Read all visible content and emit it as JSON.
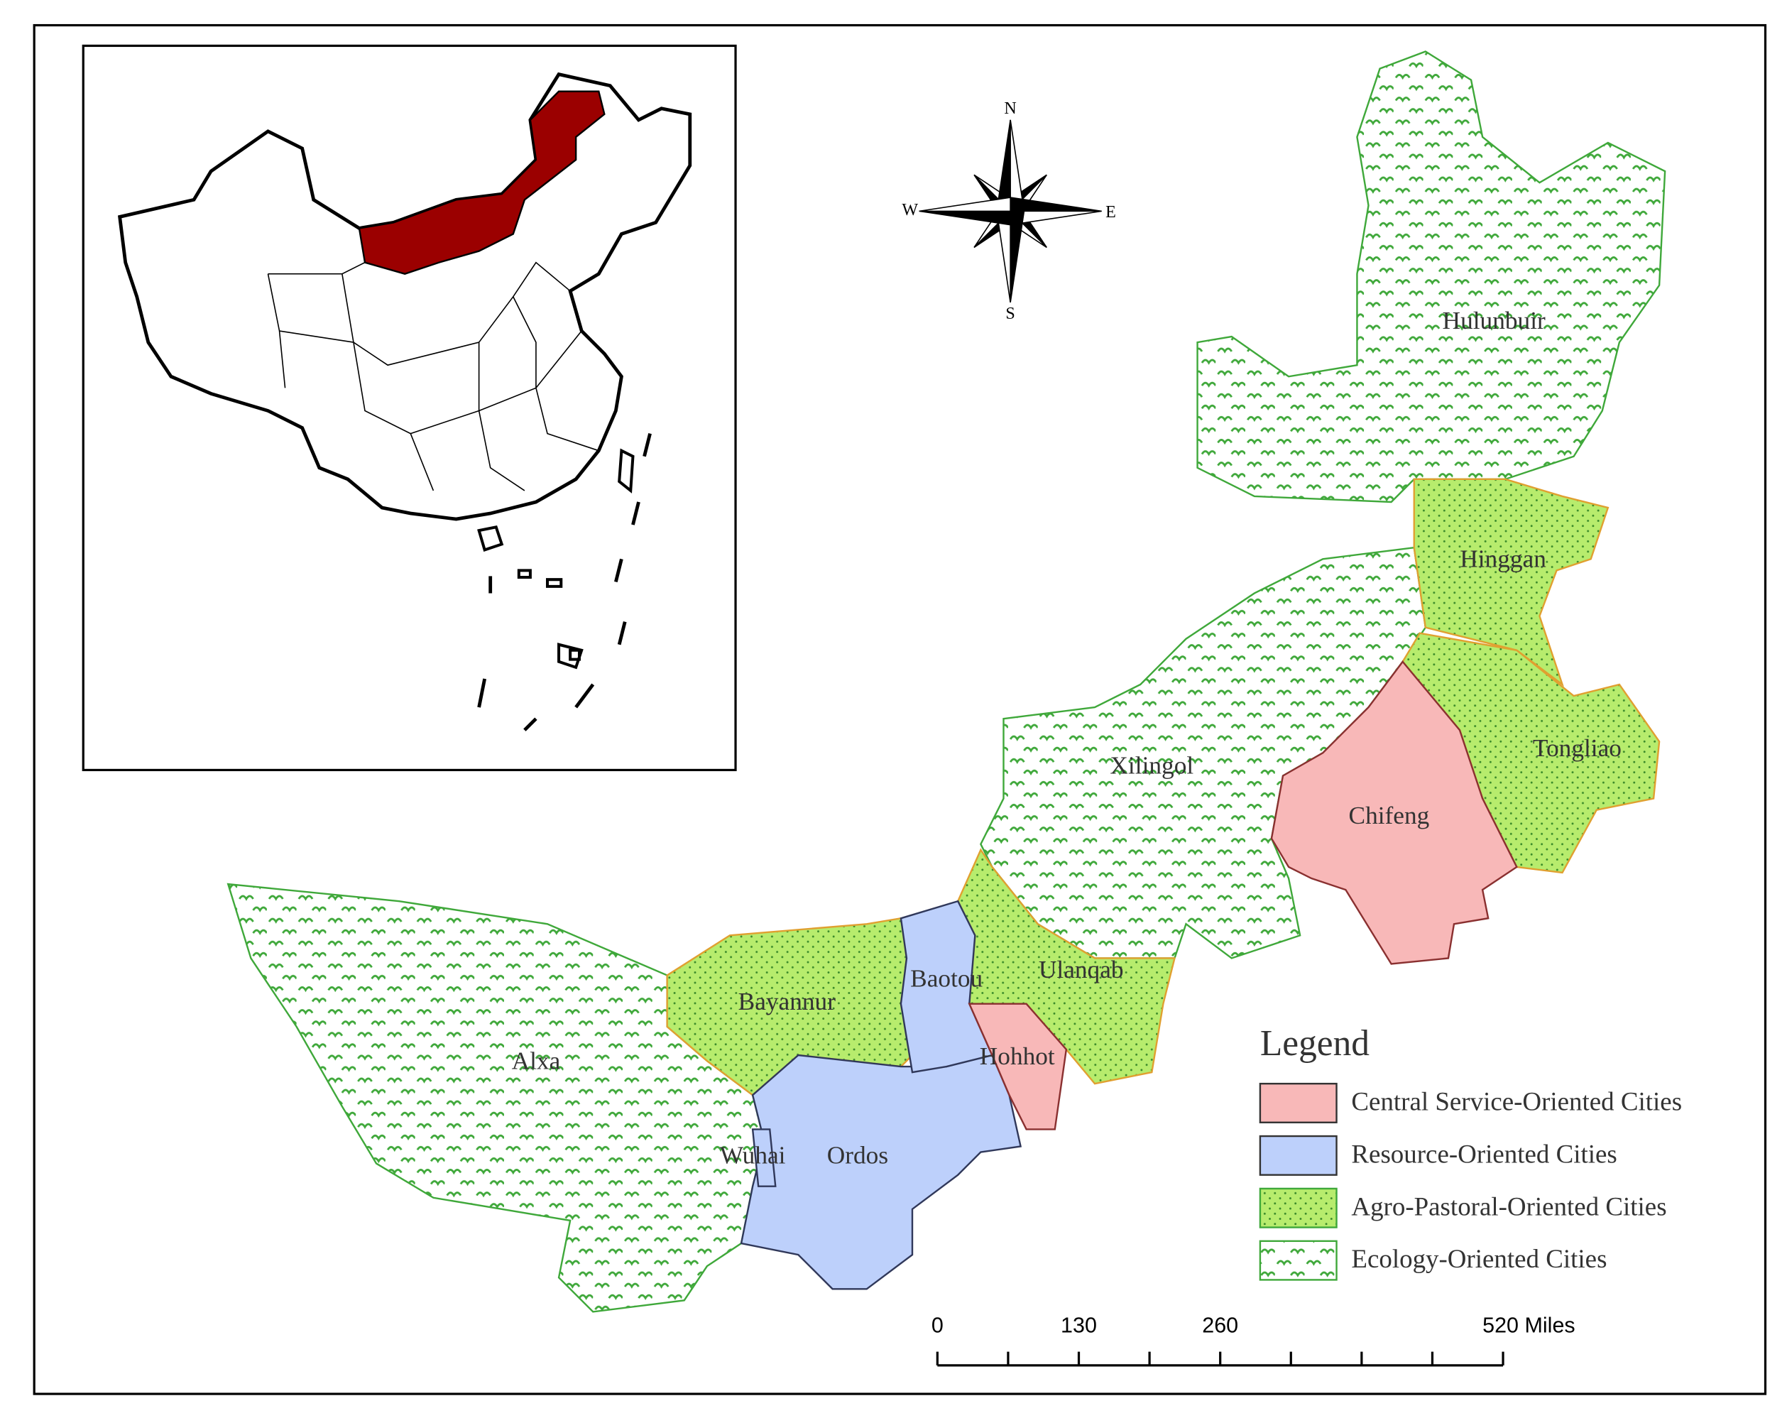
{
  "map": {
    "regions": [
      {
        "name": "Hulunbuir"
      },
      {
        "name": "Hinggan"
      },
      {
        "name": "Tongliao"
      },
      {
        "name": "Chifeng"
      },
      {
        "name": "Xilingol"
      },
      {
        "name": "Ulanqab"
      },
      {
        "name": "Baotou"
      },
      {
        "name": "Hohhot"
      },
      {
        "name": "Bayannur"
      },
      {
        "name": "Alxa"
      },
      {
        "name": "Wuhai"
      },
      {
        "name": "Ordos"
      }
    ],
    "legend": {
      "title": "Legend",
      "items": [
        "Central Service-Oriented Cities",
        "Resource-Oriented Cities",
        "Agro-Pastoral-Oriented Cities",
        "Ecology-Oriented Cities"
      ]
    },
    "compass": {
      "north": "N",
      "south": "S",
      "west": "W",
      "east": "E"
    },
    "scale_bar": {
      "labels": [
        "0",
        "130",
        "260",
        "520 Miles"
      ]
    }
  }
}
